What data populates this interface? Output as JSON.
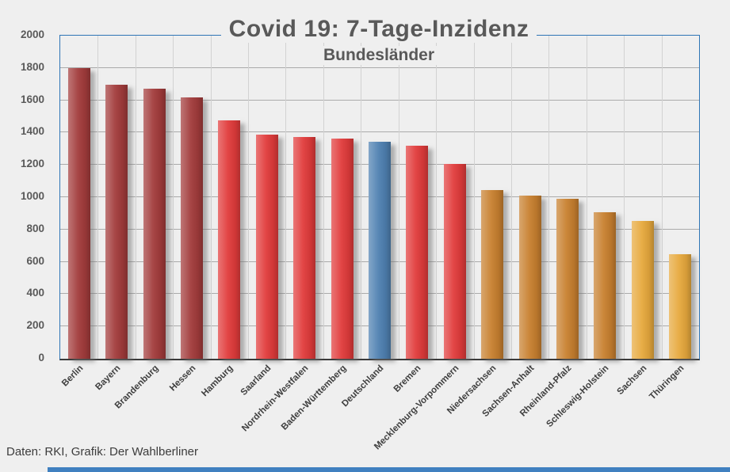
{
  "page": {
    "background": "#EFEFEF",
    "plot_border_color": "#2E75B6",
    "axis_line_color": "#3A3A3A",
    "accent_bar_color": "#4080C0",
    "title_color": "#595959",
    "label_color": "#3F3F3F"
  },
  "chart_data": {
    "type": "bar",
    "title": "Covid 19: 7-Tage-Inzidenz",
    "subtitle": "Bundesländer",
    "source": "Daten: RKI, Grafik: Der Wahlberliner",
    "xlabel": "",
    "ylabel": "",
    "ylim": [
      0,
      2000
    ],
    "ytick_step": 200,
    "grid": true,
    "legend": false,
    "categories": [
      "Berlin",
      "Bayern",
      "Brandenburg",
      "Hessen",
      "Hamburg",
      "Saarland",
      "Nordrhein-Westfalen",
      "Baden-Württemberg",
      "Deutschland",
      "Bremen",
      "Mecklenburg-Vorpommern",
      "Niedersachsen",
      "Sachsen-Anhalt",
      "Rheinland-Pfalz",
      "Schleswig-Holstein",
      "Sachsen",
      "Thüringen"
    ],
    "values": [
      1800,
      1695,
      1670,
      1620,
      1475,
      1385,
      1375,
      1365,
      1345,
      1320,
      1205,
      1045,
      1010,
      990,
      905,
      855,
      645
    ],
    "bar_groups": [
      "darkred",
      "darkred",
      "darkred",
      "darkred",
      "red",
      "red",
      "red",
      "red",
      "blue",
      "red",
      "red",
      "orange",
      "orange",
      "orange",
      "orange",
      "gold",
      "gold"
    ],
    "colors": {
      "darkred": "#A23B3B",
      "red": "#E13B3B",
      "blue": "#4E80B1",
      "orange": "#C8802F",
      "gold": "#E7A93D"
    }
  }
}
